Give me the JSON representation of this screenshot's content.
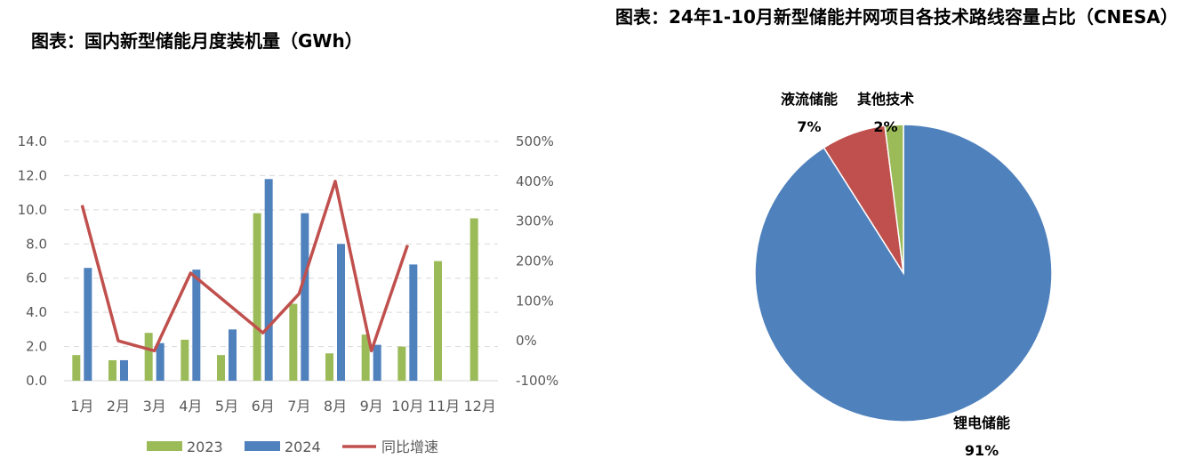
{
  "left_title": "图表：国内新型储能月度装机量（GWh）",
  "right_title": "图表：24年1-10月新型储能并网项目各技术路线容量占比（CNESA）",
  "chart_data": [
    {
      "type": "bar",
      "title": "图表：国内新型储能月度装机量（GWh）",
      "categories": [
        "1月",
        "2月",
        "3月",
        "4月",
        "5月",
        "6月",
        "7月",
        "8月",
        "9月",
        "10月",
        "11月",
        "12月"
      ],
      "series": [
        {
          "name": "2023",
          "color": "#9BBB59",
          "axis": "left",
          "values": [
            1.5,
            1.2,
            2.8,
            2.4,
            1.5,
            9.8,
            4.5,
            1.6,
            2.7,
            2.0,
            7.0,
            9.5
          ]
        },
        {
          "name": "2024",
          "color": "#4F81BD",
          "axis": "left",
          "values": [
            6.6,
            1.2,
            2.2,
            6.5,
            3.0,
            11.8,
            9.8,
            8.0,
            2.1,
            6.8,
            null,
            null
          ]
        },
        {
          "name": "同比增速",
          "color": "#C0504D",
          "type": "line",
          "axis": "right",
          "unit": "%",
          "values": [
            340,
            0,
            -25,
            170,
            null,
            20,
            118,
            400,
            -25,
            240,
            null,
            null
          ]
        }
      ],
      "y_left": {
        "range": [
          0,
          14
        ],
        "ticks": [
          "0.0",
          "2.0",
          "4.0",
          "6.0",
          "8.0",
          "10.0",
          "12.0",
          "14.0"
        ]
      },
      "y_right": {
        "range": [
          -100,
          500
        ],
        "ticks": [
          "-100%",
          "0%",
          "100%",
          "200%",
          "300%",
          "400%",
          "500%"
        ]
      },
      "grid": true,
      "legend": "bottom"
    },
    {
      "type": "pie",
      "title": "图表：24年1-10月新型储能并网项目各技术路线容量占比（CNESA）",
      "slices": [
        {
          "name": "锂电储能",
          "pct_label": "91%",
          "value": 91,
          "color": "#4F81BD"
        },
        {
          "name": "液流储能",
          "pct_label": "7%",
          "value": 7,
          "color": "#C0504D"
        },
        {
          "name": "其他技术",
          "pct_label": "2%",
          "value": 2,
          "color": "#9BBB59"
        }
      ],
      "legend": "none"
    }
  ]
}
